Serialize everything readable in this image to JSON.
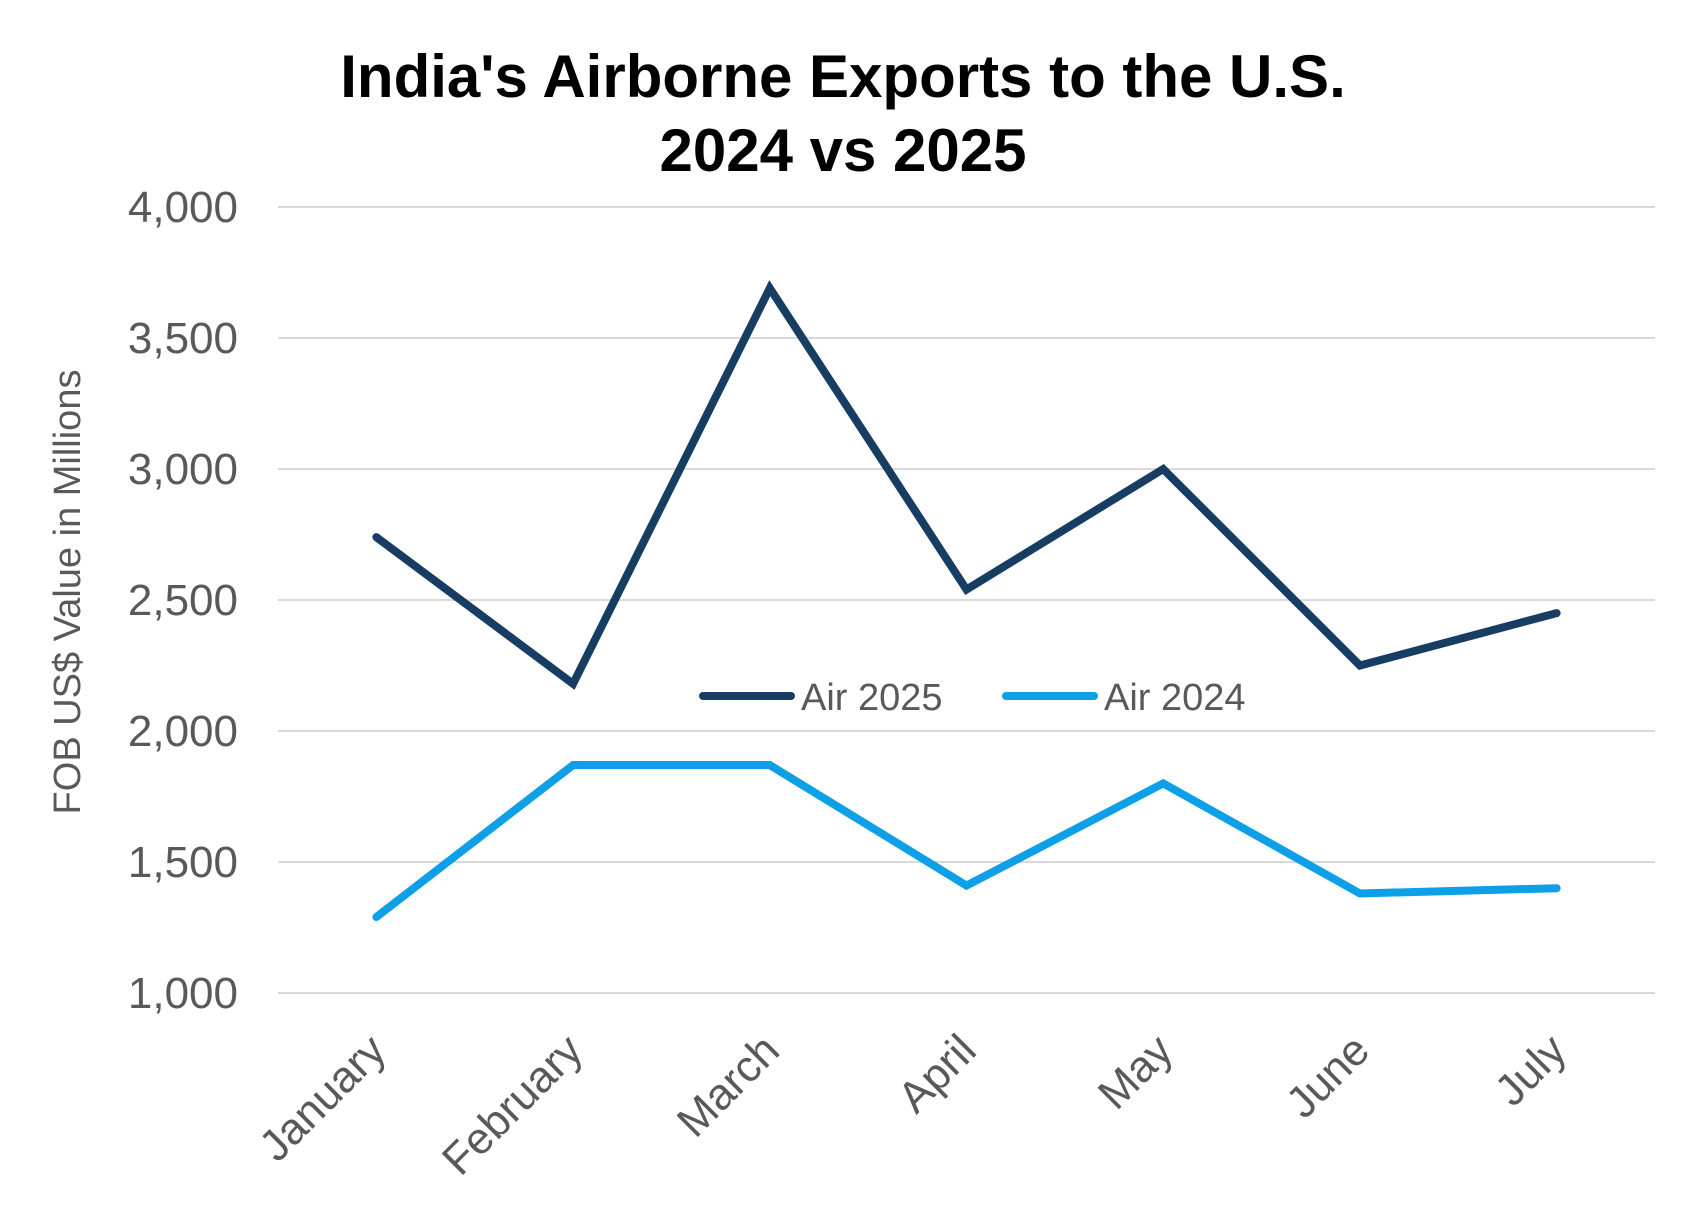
{
  "chart_data": {
    "type": "line",
    "title_lines": [
      "India's Airborne Exports to the U.S.",
      "2024 vs 2025"
    ],
    "ylabel": "FOB US$ Value in Millions",
    "xlabel": "",
    "categories": [
      "January",
      "February",
      "March",
      "April",
      "May",
      "June",
      "July"
    ],
    "ylim": [
      1000,
      4000
    ],
    "yticks": [
      1000,
      1500,
      2000,
      2500,
      3000,
      3500,
      4000
    ],
    "ytick_labels": [
      "1,000",
      "1,500",
      "2,000",
      "2,500",
      "3,000",
      "3,500",
      "4,000"
    ],
    "grid": true,
    "legend_position": "center",
    "series": [
      {
        "name": "Air 2025",
        "color": "#173d63",
        "values": [
          2740,
          2180,
          3690,
          2540,
          3000,
          2250,
          2450
        ]
      },
      {
        "name": "Air 2024",
        "color": "#0ea0e6",
        "values": [
          1290,
          1870,
          1870,
          1410,
          1800,
          1380,
          1400
        ]
      }
    ]
  }
}
